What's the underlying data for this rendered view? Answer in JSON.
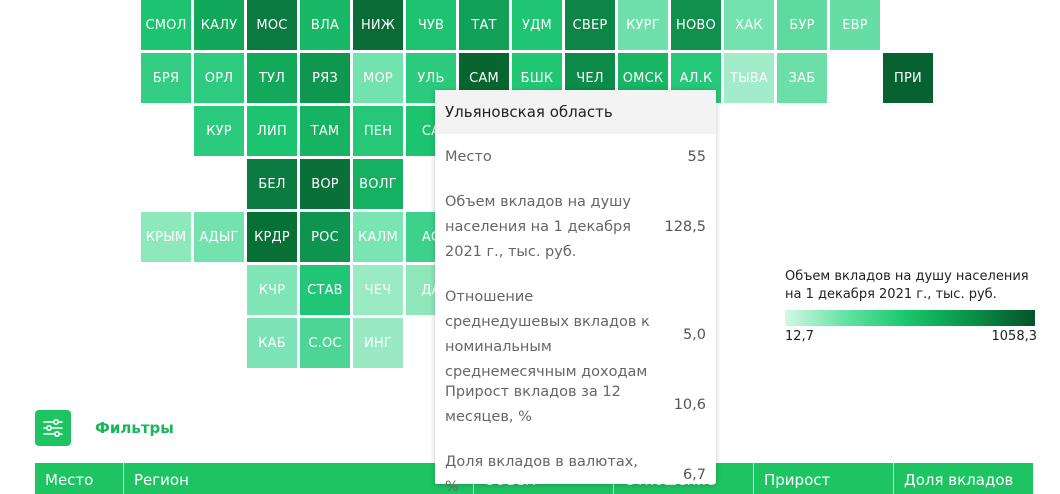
{
  "tiles": [
    {
      "label": "СМОЛ",
      "col": 0,
      "row": 0,
      "color": "#1cc46f"
    },
    {
      "label": "КАЛУ",
      "col": 1,
      "row": 0,
      "color": "#12a85a"
    },
    {
      "label": "МОС",
      "col": 2,
      "row": 0,
      "color": "#0b7a40"
    },
    {
      "label": "ВЛА",
      "col": 3,
      "row": 0,
      "color": "#19b867"
    },
    {
      "label": "НИЖ",
      "col": 4,
      "row": 0,
      "color": "#0a6b37"
    },
    {
      "label": "ЧУВ",
      "col": 5,
      "row": 0,
      "color": "#1cc46f"
    },
    {
      "label": "ТАТ",
      "col": 6,
      "row": 0,
      "color": "#11a257"
    },
    {
      "label": "УДМ",
      "col": 7,
      "row": 0,
      "color": "#1ec572"
    },
    {
      "label": "СВЕР",
      "col": 8,
      "row": 0,
      "color": "#0d8546"
    },
    {
      "label": "КУРГ",
      "col": 9,
      "row": 0,
      "color": "#6fe0ab"
    },
    {
      "label": "НОВО",
      "col": 10,
      "row": 0,
      "color": "#0f904c"
    },
    {
      "label": "ХАК",
      "col": 11,
      "row": 0,
      "color": "#73e2af"
    },
    {
      "label": "БУР",
      "col": 12,
      "row": 0,
      "color": "#5ed9a0"
    },
    {
      "label": "ЕВР",
      "col": 13,
      "row": 0,
      "color": "#67dda6"
    },
    {
      "label": "БРЯ",
      "col": 0,
      "row": 1,
      "color": "#33cd83"
    },
    {
      "label": "ОРЛ",
      "col": 1,
      "row": 1,
      "color": "#2dcb7e"
    },
    {
      "label": "ТУЛ",
      "col": 2,
      "row": 1,
      "color": "#12a95a"
    },
    {
      "label": "РЯЗ",
      "col": 3,
      "row": 1,
      "color": "#0f974f"
    },
    {
      "label": "МОР",
      "col": 4,
      "row": 1,
      "color": "#72e2ae"
    },
    {
      "label": "УЛЬ",
      "col": 5,
      "row": 1,
      "color": "#2bca7c"
    },
    {
      "label": "САМ",
      "col": 6,
      "row": 1,
      "color": "#086530"
    },
    {
      "label": "БШК",
      "col": 7,
      "row": 1,
      "color": "#22c774"
    },
    {
      "label": "ЧЕЛ",
      "col": 8,
      "row": 1,
      "color": "#0d8c49"
    },
    {
      "label": "ОМСК",
      "col": 9,
      "row": 1,
      "color": "#17b564"
    },
    {
      "label": "АЛ.К",
      "col": 10,
      "row": 1,
      "color": "#25c878"
    },
    {
      "label": "ТЫВА",
      "col": 11,
      "row": 1,
      "color": "#a3ecc9"
    },
    {
      "label": "ЗАБ",
      "col": 12,
      "row": 1,
      "color": "#6cdfa9"
    },
    {
      "label": "ПРИ",
      "col": 14,
      "row": 1,
      "color": "#076131"
    },
    {
      "label": "КУР",
      "col": 1,
      "row": 2,
      "color": "#2bca7c"
    },
    {
      "label": "ЛИП",
      "col": 2,
      "row": 2,
      "color": "#1cc46f"
    },
    {
      "label": "ТАМ",
      "col": 3,
      "row": 2,
      "color": "#16b363"
    },
    {
      "label": "ПЕН",
      "col": 4,
      "row": 2,
      "color": "#26c878"
    },
    {
      "label": "СА",
      "col": 5,
      "row": 2,
      "color": "#1cc46f"
    },
    {
      "label": "БЕЛ",
      "col": 2,
      "row": 3,
      "color": "#0b7a40"
    },
    {
      "label": "ВОР",
      "col": 3,
      "row": 3,
      "color": "#0a7039"
    },
    {
      "label": "ВОЛГ",
      "col": 4,
      "row": 3,
      "color": "#15b060"
    },
    {
      "label": "КРЫМ",
      "col": 0,
      "row": 4,
      "color": "#8de8bc"
    },
    {
      "label": "АДЫГ",
      "col": 1,
      "row": 4,
      "color": "#73e2af"
    },
    {
      "label": "КРДР",
      "col": 2,
      "row": 4,
      "color": "#077035"
    },
    {
      "label": "РОС",
      "col": 3,
      "row": 4,
      "color": "#0f9450"
    },
    {
      "label": "КАЛМ",
      "col": 4,
      "row": 4,
      "color": "#7ae4b3"
    },
    {
      "label": "АС",
      "col": 5,
      "row": 4,
      "color": "#3ed18b"
    },
    {
      "label": "КЧР",
      "col": 2,
      "row": 5,
      "color": "#80e5b6"
    },
    {
      "label": "СТАВ",
      "col": 3,
      "row": 5,
      "color": "#20c676"
    },
    {
      "label": "ЧЕЧ",
      "col": 4,
      "row": 5,
      "color": "#9aeac3"
    },
    {
      "label": "ДА",
      "col": 5,
      "row": 5,
      "color": "#8ee7bb"
    },
    {
      "label": "КАБ",
      "col": 2,
      "row": 6,
      "color": "#7ce4b4"
    },
    {
      "label": "С.ОС",
      "col": 3,
      "row": 6,
      "color": "#4cd595"
    },
    {
      "label": "ИНГ",
      "col": 4,
      "row": 6,
      "color": "#9be9c3"
    }
  ],
  "legend": {
    "title": "Объем вкладов на душу населения на 1 декабря 2021 г., тыс. руб.",
    "min": "12,7",
    "max": "1058,3"
  },
  "filters": {
    "label": "Фильтры",
    "icon": "sliders-icon",
    "accent": "#1ec462"
  },
  "table_header": [
    {
      "label": "Место",
      "width": 89
    },
    {
      "label": "Регион",
      "width": 350
    },
    {
      "label": "Объем",
      "width": 140
    },
    {
      "label": "Отношение",
      "width": 140
    },
    {
      "label": "Прирост",
      "width": 140
    },
    {
      "label": "Доля вкладов",
      "width": 139
    }
  ],
  "tooltip": {
    "title": "Ульяновская область",
    "rows": [
      {
        "label": "Место",
        "value": "55"
      },
      {
        "label": "Объем вкладов на душу населения на 1 декабря 2021 г., тыс. руб.",
        "value": "128,5"
      },
      {
        "label": "Отношение среднедушевых вкладов к номинальным среднемесячным доходам",
        "value": "5,0"
      },
      {
        "label": "Прирост вкладов за 12 месяцев, %",
        "value": "10,6"
      },
      {
        "label": "Доля вкладов в валютах, %",
        "value": "6,7"
      }
    ]
  }
}
